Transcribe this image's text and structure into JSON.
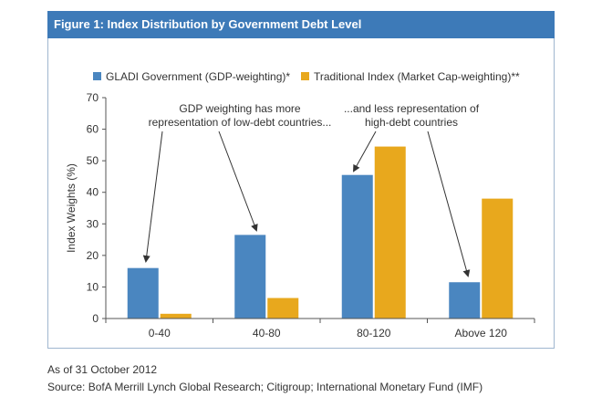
{
  "figure_title": "Figure 1: Index Distribution by Government Debt Level",
  "annotations": {
    "left": [
      "GDP weighting has more",
      "representation of low-debt countries..."
    ],
    "right": [
      "...and less representation of",
      "high-debt countries"
    ]
  },
  "footer": {
    "as_of": "As of 31 October 2012",
    "source": "Source: BofA Merrill Lynch Global Research; Citigroup; International Monetary Fund (IMF)"
  },
  "chart_data": {
    "type": "bar",
    "categories": [
      "0-40",
      "40-80",
      "80-120",
      "Above 120"
    ],
    "series": [
      {
        "name": "GLADI Government (GDP-weighting)*",
        "color": "#4a86c0",
        "values": [
          16,
          26.5,
          45.5,
          11.5
        ]
      },
      {
        "name": "Traditional Index (Market Cap-weighting)**",
        "color": "#e8a81d",
        "values": [
          1.5,
          6.5,
          54.5,
          38
        ]
      }
    ],
    "ylabel": "Index Weights (%)",
    "xlabel": "",
    "ylim": [
      0,
      70
    ],
    "yticks": [
      0,
      10,
      20,
      30,
      40,
      50,
      60,
      70
    ],
    "grid": false,
    "legend": "top"
  }
}
